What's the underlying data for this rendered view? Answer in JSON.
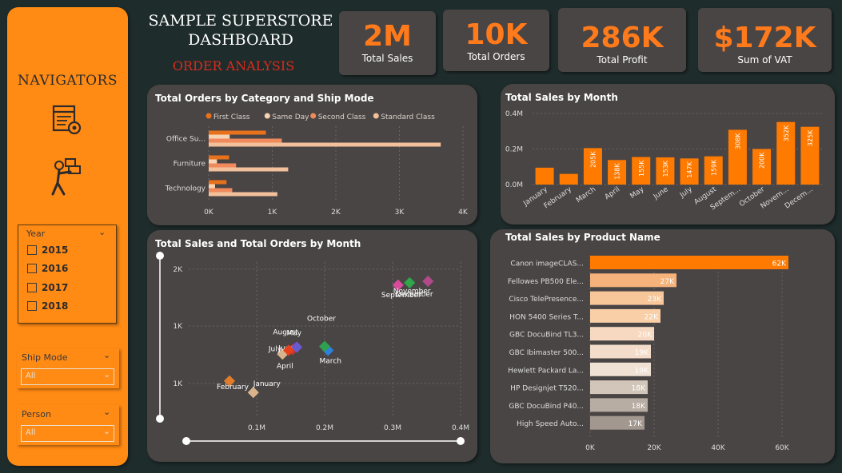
{
  "nav": {
    "title": "NAVIGATORS"
  },
  "year_slicer": {
    "header": "Year",
    "years": [
      "2015",
      "2016",
      "2017",
      "2018"
    ]
  },
  "ship_mode": {
    "header": "Ship Mode",
    "value": "All"
  },
  "person": {
    "header": "Person",
    "value": "All"
  },
  "header": {
    "title_line1": "SAMPLE SUPERSTORE",
    "title_line2": "DASHBOARD",
    "subtitle": "ORDER ANALYSIS"
  },
  "kpis": [
    {
      "value": "2M",
      "label": "Total Sales"
    },
    {
      "value": "10K",
      "label": "Total Orders"
    },
    {
      "value": "286K",
      "label": "Total Profit"
    },
    {
      "value": "$172K",
      "label": "Sum of VAT"
    }
  ],
  "colors": {
    "accent": "#ff7a1a",
    "nav_bg": "#ff8a14",
    "card_bg": "#4a4545",
    "page_bg": "#1f2c2c",
    "subtitle": "#d92b1c"
  },
  "chart_data": [
    {
      "type": "bar",
      "orientation": "horizontal",
      "title": "Total Orders by Category and Ship Mode",
      "categories": [
        "Office Su...",
        "Furniture",
        "Technology"
      ],
      "series": [
        {
          "name": "First Class",
          "color": "#e8711c",
          "values": [
            900,
            320,
            280
          ]
        },
        {
          "name": "Same Day",
          "color": "#f6d3b3",
          "values": [
            330,
            130,
            100
          ]
        },
        {
          "name": "Second Class",
          "color": "#f08a5c",
          "values": [
            1150,
            430,
            370
          ]
        },
        {
          "name": "Standard Class",
          "color": "#f2c09a",
          "values": [
            3650,
            1250,
            1080
          ]
        }
      ],
      "xticks": [
        "0K",
        "1K",
        "2K",
        "3K",
        "4K"
      ],
      "xlim": [
        0,
        4000
      ],
      "legend": "top"
    },
    {
      "type": "bar",
      "title": "Total Sales by Month",
      "categories": [
        "January",
        "February",
        "March",
        "April",
        "May",
        "June",
        "July",
        "August",
        "Septem...",
        "October",
        "Novem...",
        "Decem..."
      ],
      "values": [
        95,
        60,
        205,
        138,
        155,
        153,
        147,
        159,
        308,
        200,
        352,
        325
      ],
      "data_labels": [
        "",
        "",
        "205K",
        "138K",
        "155K",
        "153K",
        "147K",
        "159K",
        "308K",
        "200K",
        "352K",
        "325K"
      ],
      "yticks": [
        "0.0M",
        "0.2M",
        "0.4M"
      ],
      "ylim": [
        0,
        400
      ],
      "color": "#ff7a00"
    },
    {
      "type": "scatter",
      "title": "Total Sales and Total Orders by Month",
      "xticks": [
        "0.1M",
        "0.2M",
        "0.3M",
        "0.4M"
      ],
      "yticks": [
        "1K",
        "1K",
        "2K"
      ],
      "xlim": [
        0.0,
        0.4
      ],
      "ylim": [
        0.2,
        2.2
      ],
      "points": [
        {
          "label": "January",
          "x": 0.095,
          "y": 0.5,
          "color": "#d8b38c"
        },
        {
          "label": "February",
          "x": 0.06,
          "y": 0.65,
          "color": "#e07c2a"
        },
        {
          "label": "March",
          "x": 0.205,
          "y": 1.05,
          "color": "#2f7fe0"
        },
        {
          "label": "April",
          "x": 0.138,
          "y": 1.0,
          "color": "#d8b38c"
        },
        {
          "label": "May",
          "x": 0.155,
          "y": 1.08,
          "color": "#7a2a9a"
        },
        {
          "label": "June",
          "x": 0.153,
          "y": 1.06,
          "color": "#c03a2a"
        },
        {
          "label": "July",
          "x": 0.147,
          "y": 1.05,
          "color": "#e8401c"
        },
        {
          "label": "August",
          "x": 0.159,
          "y": 1.09,
          "color": "#6a5ad0"
        },
        {
          "label": "September",
          "x": 0.308,
          "y": 1.9,
          "color": "#d84a9a"
        },
        {
          "label": "October",
          "x": 0.2,
          "y": 1.1,
          "color": "#2fa050"
        },
        {
          "label": "November",
          "x": 0.352,
          "y": 1.95,
          "color": "#b04a8a"
        },
        {
          "label": "December",
          "x": 0.325,
          "y": 1.93,
          "color": "#2fa64a"
        }
      ]
    },
    {
      "type": "bar",
      "orientation": "horizontal",
      "title": "Total Sales by Product Name",
      "categories": [
        "Canon imageCLAS...",
        "Fellowes PB500 Ele...",
        "Cisco TelePresence...",
        "HON 5400 Series T...",
        "GBC DocuBind TL3...",
        "GBC Ibimaster 500...",
        "Hewlett Packard La...",
        "HP Designjet T520...",
        "GBC DocuBind P40...",
        "High Speed Auto..."
      ],
      "values": [
        62,
        27,
        23,
        22,
        20,
        19,
        19,
        18,
        18,
        17
      ],
      "data_labels": [
        "62K",
        "27K",
        "23K",
        "22K",
        "20K",
        "19K",
        "19K",
        "18K",
        "18K",
        "17K"
      ],
      "colors": [
        "#ff7a00",
        "#f5b27a",
        "#f7c79a",
        "#f8cfa6",
        "#f6d9c0",
        "#f3ddca",
        "#efe1d3",
        "#d2c6ba",
        "#b8ada3",
        "#a39890"
      ],
      "xticks": [
        "0K",
        "20K",
        "40K",
        "60K"
      ],
      "xlim": [
        0,
        60
      ]
    }
  ]
}
